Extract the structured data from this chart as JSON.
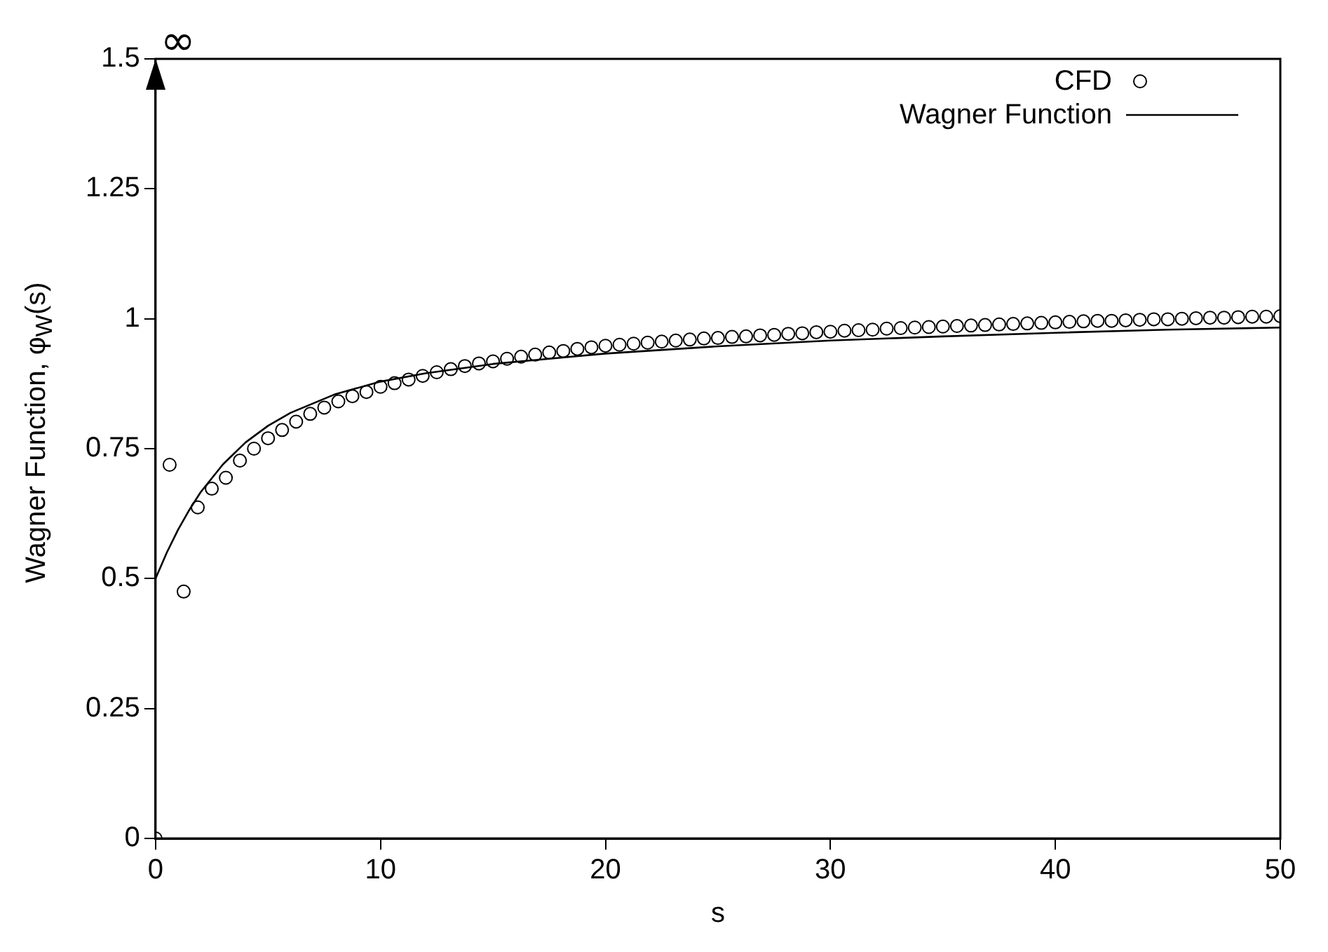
{
  "chart_data": {
    "type": "scatter",
    "xlabel": "s",
    "ylabel": "Wagner Function, φ$_{W}$(s)",
    "xlim": [
      0,
      50
    ],
    "xticks": [
      0,
      10,
      20,
      30,
      40,
      50
    ],
    "ylim": [
      0,
      1.5
    ],
    "yticks": [
      0,
      0.25,
      0.5,
      0.75,
      1,
      1.25,
      1.5
    ],
    "grid": false,
    "legend": "top right",
    "marker": "circle",
    "annotations": [
      "∞"
    ],
    "series": [
      {
        "name": "CFD",
        "type": "scatter",
        "color": "#000000",
        "x": [
          0,
          0.625,
          1.25,
          1.875,
          2.5,
          3.125,
          3.75,
          4.375,
          5,
          5.625,
          6.25,
          6.875,
          7.5,
          8.125,
          8.75,
          9.375,
          10,
          10.625,
          11.25,
          11.875,
          12.5,
          13.125,
          13.75,
          14.375,
          15,
          15.625,
          16.25,
          16.875,
          17.5,
          18.125,
          18.75,
          19.375,
          20,
          20.625,
          21.25,
          21.875,
          22.5,
          23.125,
          23.75,
          24.375,
          25,
          25.625,
          26.25,
          26.875,
          27.5,
          28.125,
          28.75,
          29.375,
          30,
          30.625,
          31.25,
          31.875,
          32.5,
          33.125,
          33.75,
          34.375,
          35,
          35.625,
          36.25,
          36.875,
          37.5,
          38.125,
          38.75,
          39.375,
          40,
          40.625,
          41.25,
          41.875,
          42.5,
          43.125,
          43.75,
          44.375,
          45,
          45.625,
          46.25,
          46.875,
          47.5,
          48.125,
          48.75,
          49.375,
          50
        ],
        "values": [
          0,
          0.719,
          0.475,
          0.637,
          0.673,
          0.694,
          0.727,
          0.75,
          0.77,
          0.786,
          0.802,
          0.817,
          0.829,
          0.841,
          0.851,
          0.859,
          0.869,
          0.876,
          0.883,
          0.89,
          0.897,
          0.903,
          0.909,
          0.914,
          0.918,
          0.923,
          0.927,
          0.931,
          0.935,
          0.938,
          0.942,
          0.945,
          0.948,
          0.95,
          0.952,
          0.954,
          0.956,
          0.958,
          0.96,
          0.962,
          0.963,
          0.965,
          0.966,
          0.968,
          0.969,
          0.971,
          0.972,
          0.974,
          0.975,
          0.977,
          0.978,
          0.979,
          0.981,
          0.982,
          0.983,
          0.984,
          0.985,
          0.986,
          0.987,
          0.988,
          0.989,
          0.99,
          0.991,
          0.992,
          0.993,
          0.994,
          0.995,
          0.996,
          0.996,
          0.997,
          0.998,
          0.999,
          0.999,
          1.0,
          1.001,
          1.002,
          1.002,
          1.003,
          1.004,
          1.004,
          1.005
        ]
      },
      {
        "name": "Wagner Function",
        "type": "line",
        "color": "#000000",
        "marker": "none",
        "line_style": "solid",
        "x": [
          0,
          0.5,
          1,
          1.5,
          2,
          3,
          4,
          5,
          6,
          8,
          10,
          12,
          15,
          20,
          25,
          30,
          35,
          40,
          45,
          50
        ],
        "values": [
          0.5,
          0.55,
          0.594,
          0.632,
          0.666,
          0.72,
          0.762,
          0.794,
          0.819,
          0.855,
          0.879,
          0.895,
          0.913,
          0.933,
          0.947,
          0.958,
          0.966,
          0.973,
          0.979,
          0.983
        ]
      }
    ]
  }
}
